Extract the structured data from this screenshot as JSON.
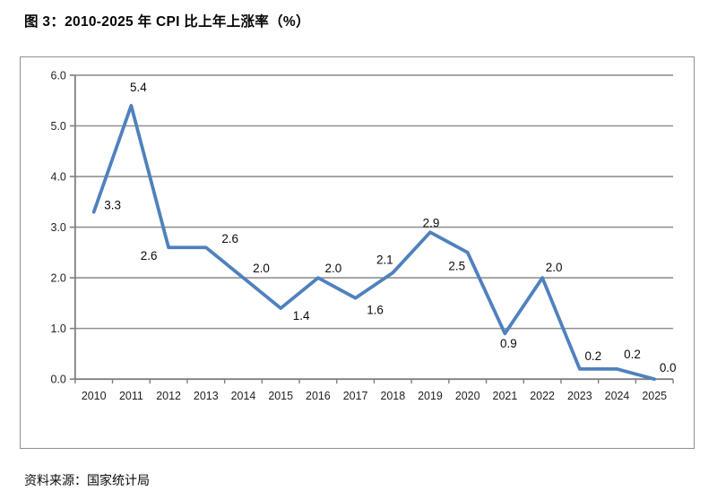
{
  "chart_data": {
    "type": "line",
    "title": "图 3：2010-2025 年 CPI 比上年上涨率（%）",
    "source_note": "资料来源：国家统计局",
    "categories": [
      "2010",
      "2011",
      "2012",
      "2013",
      "2014",
      "2015",
      "2016",
      "2017",
      "2018",
      "2019",
      "2020",
      "2021",
      "2022",
      "2023",
      "2024",
      "2025"
    ],
    "values": [
      3.3,
      5.4,
      2.6,
      2.6,
      2.0,
      1.4,
      2.0,
      1.6,
      2.1,
      2.9,
      2.5,
      0.9,
      2.0,
      0.2,
      0.2,
      0.0
    ],
    "xlabel": "",
    "ylabel": "",
    "ylim": [
      0,
      6
    ],
    "ytick_step": 1,
    "ytick_label_decimals": 1,
    "data_label_decimals": 1,
    "grid": true,
    "legend": "none",
    "colors": {
      "line": "#4F81BD",
      "grid": "#909090",
      "axis": "#7f7f7f",
      "tick_text": "#1f1f1f",
      "data_label_text": "#0a0a0a",
      "chart_border": "#8f8f8f",
      "background": "#ffffff"
    }
  }
}
